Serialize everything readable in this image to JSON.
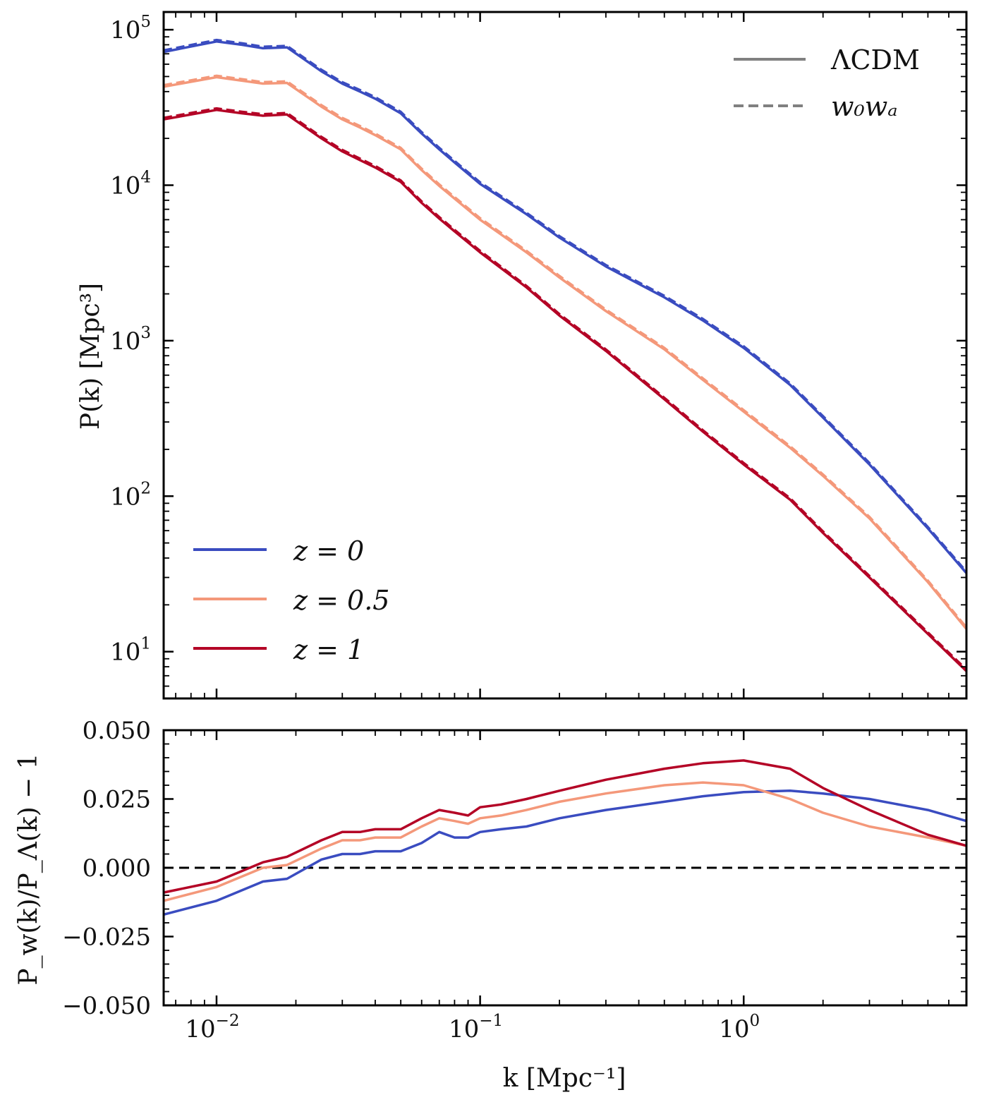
{
  "chart_data": [
    {
      "type": "line",
      "id": "top",
      "scale": "log-log",
      "xlabel": "k [Mpc⁻¹]",
      "ylabel": "P(k) [Mpc³]",
      "xlim": [
        0.0063,
        7.0
      ],
      "ylim": [
        5,
        130000
      ],
      "yticks": [
        {
          "value": 10,
          "base": "10",
          "exp": "1"
        },
        {
          "value": 100,
          "base": "10",
          "exp": "2"
        },
        {
          "value": 1000,
          "base": "10",
          "exp": "3"
        },
        {
          "value": 10000,
          "base": "10",
          "exp": "4"
        },
        {
          "value": 100000,
          "base": "10",
          "exp": "5"
        }
      ],
      "series": [
        {
          "name": "z = 0",
          "color": "#3a4cc0",
          "x": [
            0.0063,
            0.01,
            0.0125,
            0.015,
            0.0185,
            0.025,
            0.03,
            0.035,
            0.04,
            0.05,
            0.06,
            0.07,
            0.08,
            0.1,
            0.15,
            0.2,
            0.3,
            0.5,
            0.7,
            1.0,
            1.5,
            2.0,
            3.0,
            5.0,
            7.0
          ],
          "y": [
            72000,
            84000,
            80000,
            76000,
            77000,
            54000,
            45000,
            40000,
            36000,
            29000,
            21500,
            17000,
            14000,
            10200,
            6500,
            4600,
            3000,
            1900,
            1350,
            900,
            520,
            320,
            160,
            62,
            32
          ]
        },
        {
          "name": "z = 0.5",
          "color": "#f4987a",
          "x": [
            0.0063,
            0.01,
            0.0125,
            0.015,
            0.0185,
            0.025,
            0.03,
            0.035,
            0.04,
            0.05,
            0.06,
            0.07,
            0.08,
            0.1,
            0.15,
            0.2,
            0.3,
            0.5,
            0.7,
            1.0,
            1.5,
            2.0,
            3.0,
            5.0,
            7.0
          ],
          "y": [
            43000,
            49500,
            47000,
            45000,
            45500,
            32000,
            26500,
            23500,
            21000,
            17000,
            12500,
            9900,
            8200,
            6000,
            3700,
            2550,
            1550,
            880,
            560,
            350,
            205,
            135,
            72,
            28,
            14
          ]
        },
        {
          "name": "z = 1",
          "color": "#b40426",
          "x": [
            0.0063,
            0.01,
            0.0125,
            0.015,
            0.0185,
            0.025,
            0.03,
            0.035,
            0.04,
            0.05,
            0.06,
            0.07,
            0.08,
            0.1,
            0.15,
            0.2,
            0.3,
            0.5,
            0.7,
            1.0,
            1.5,
            2.0,
            3.0,
            5.0,
            7.0
          ],
          "y": [
            26500,
            30500,
            29000,
            28000,
            28500,
            20000,
            16500,
            14500,
            13000,
            10500,
            7700,
            6100,
            5050,
            3700,
            2200,
            1450,
            860,
            420,
            260,
            160,
            95,
            58,
            30,
            13,
            7.5
          ]
        }
      ],
      "legend_colors": [
        {
          "label": "z = 0",
          "color": "#3a4cc0"
        },
        {
          "label": "z = 0.5",
          "color": "#f4987a"
        },
        {
          "label": "z = 1",
          "color": "#b40426"
        }
      ],
      "legend_styles": [
        {
          "label": "ΛCDM",
          "style": "solid",
          "color": "#808080"
        },
        {
          "label": "w₀wₐ",
          "style": "dashed",
          "color": "#808080"
        }
      ]
    },
    {
      "type": "line",
      "id": "bottom",
      "scale": "log-x",
      "xlabel": "k [Mpc⁻¹]",
      "ylabel": "P_w(k)/P_Λ(k) − 1",
      "xlim": [
        0.0063,
        7.0
      ],
      "ylim": [
        -0.05,
        0.05
      ],
      "yticks": [
        "0.050",
        "0.025",
        "0.000",
        "−0.025",
        "−0.050"
      ],
      "xticks": [
        {
          "value": 0.01,
          "base": "10",
          "exp": "−2"
        },
        {
          "value": 0.1,
          "base": "10",
          "exp": "−1"
        },
        {
          "value": 1,
          "base": "10",
          "exp": "0"
        }
      ],
      "reference_line": 0,
      "series": [
        {
          "name": "z = 0",
          "color": "#3a4cc0",
          "x": [
            0.0063,
            0.01,
            0.015,
            0.0185,
            0.025,
            0.03,
            0.035,
            0.04,
            0.05,
            0.06,
            0.07,
            0.08,
            0.09,
            0.1,
            0.12,
            0.15,
            0.2,
            0.3,
            0.5,
            0.7,
            1.0,
            1.5,
            2.0,
            3.0,
            5.0,
            7.0
          ],
          "y": [
            -0.017,
            -0.012,
            -0.005,
            -0.004,
            0.003,
            0.005,
            0.005,
            0.006,
            0.006,
            0.009,
            0.013,
            0.011,
            0.011,
            0.013,
            0.014,
            0.015,
            0.018,
            0.021,
            0.024,
            0.026,
            0.0275,
            0.028,
            0.027,
            0.025,
            0.021,
            0.017
          ]
        },
        {
          "name": "z = 0.5",
          "color": "#f4987a",
          "x": [
            0.0063,
            0.01,
            0.015,
            0.0185,
            0.025,
            0.03,
            0.035,
            0.04,
            0.05,
            0.06,
            0.07,
            0.08,
            0.09,
            0.1,
            0.12,
            0.15,
            0.2,
            0.3,
            0.5,
            0.7,
            1.0,
            1.5,
            2.0,
            3.0,
            5.0,
            7.0
          ],
          "y": [
            -0.012,
            -0.007,
            0.0,
            0.001,
            0.007,
            0.01,
            0.01,
            0.011,
            0.011,
            0.015,
            0.018,
            0.017,
            0.016,
            0.018,
            0.019,
            0.021,
            0.024,
            0.027,
            0.03,
            0.031,
            0.03,
            0.025,
            0.02,
            0.015,
            0.011,
            0.008
          ]
        },
        {
          "name": "z = 1",
          "color": "#b40426",
          "x": [
            0.0063,
            0.01,
            0.015,
            0.0185,
            0.025,
            0.03,
            0.035,
            0.04,
            0.05,
            0.06,
            0.07,
            0.08,
            0.09,
            0.1,
            0.12,
            0.15,
            0.2,
            0.3,
            0.5,
            0.7,
            1.0,
            1.5,
            2.0,
            3.0,
            5.0,
            7.0
          ],
          "y": [
            -0.009,
            -0.005,
            0.002,
            0.004,
            0.01,
            0.013,
            0.013,
            0.014,
            0.014,
            0.018,
            0.021,
            0.02,
            0.019,
            0.022,
            0.023,
            0.025,
            0.028,
            0.032,
            0.036,
            0.038,
            0.039,
            0.036,
            0.029,
            0.021,
            0.012,
            0.008
          ]
        }
      ]
    }
  ]
}
